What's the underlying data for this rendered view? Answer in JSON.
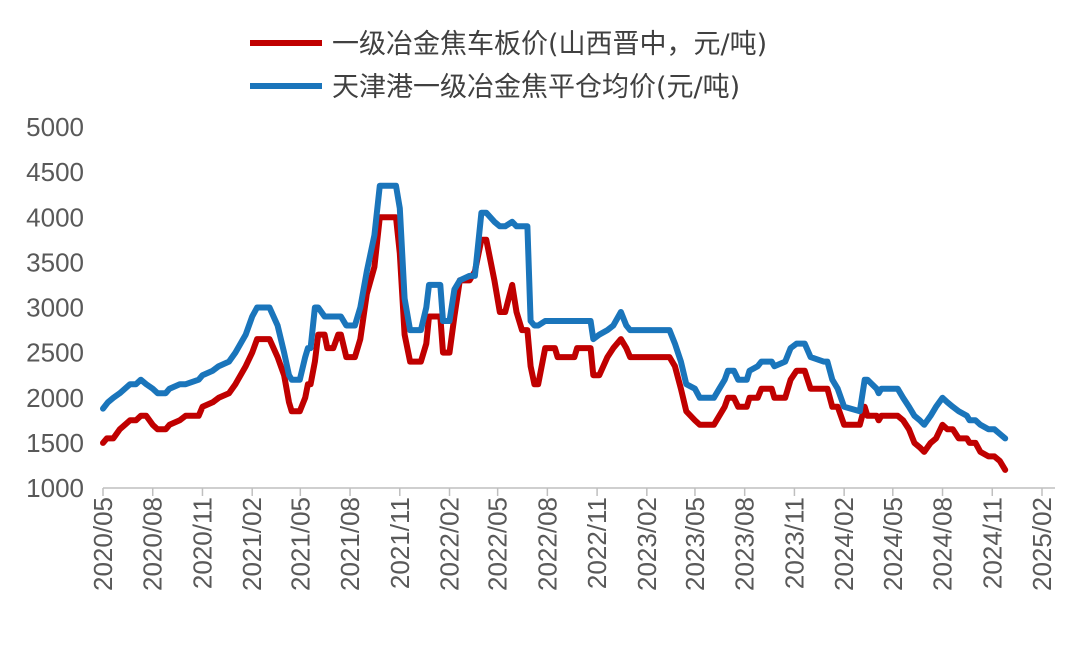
{
  "chart_data": {
    "type": "line",
    "ylim": [
      1000,
      5000
    ],
    "y_ticks": [
      1000,
      1500,
      2000,
      2500,
      3000,
      3500,
      4000,
      4500,
      5000
    ],
    "x_ticks": [
      "2020/05",
      "2020/08",
      "2020/11",
      "2021/02",
      "2021/05",
      "2021/08",
      "2021/11",
      "2022/02",
      "2022/05",
      "2022/08",
      "2022/11",
      "2023/02",
      "2023/05",
      "2023/08",
      "2023/11",
      "2024/02",
      "2024/05",
      "2024/08",
      "2024/11",
      "2025/02"
    ],
    "legend_position": "top",
    "grid": false,
    "series": [
      {
        "name": "一级冶金焦车板价(山西晋中，元/吨)",
        "color": "#C00000",
        "points": [
          [
            "2020-05-01",
            1500
          ],
          [
            "2020-05-08",
            1550
          ],
          [
            "2020-05-20",
            1550
          ],
          [
            "2020-06-01",
            1650
          ],
          [
            "2020-06-20",
            1750
          ],
          [
            "2020-07-01",
            1750
          ],
          [
            "2020-07-10",
            1800
          ],
          [
            "2020-07-20",
            1800
          ],
          [
            "2020-08-01",
            1700
          ],
          [
            "2020-08-10",
            1650
          ],
          [
            "2020-08-25",
            1650
          ],
          [
            "2020-09-01",
            1700
          ],
          [
            "2020-09-20",
            1750
          ],
          [
            "2020-10-01",
            1800
          ],
          [
            "2020-10-25",
            1800
          ],
          [
            "2020-11-01",
            1900
          ],
          [
            "2020-11-20",
            1950
          ],
          [
            "2020-12-01",
            2000
          ],
          [
            "2020-12-20",
            2050
          ],
          [
            "2021-01-01",
            2150
          ],
          [
            "2021-01-20",
            2350
          ],
          [
            "2021-02-01",
            2500
          ],
          [
            "2021-02-10",
            2650
          ],
          [
            "2021-03-01",
            2650
          ],
          [
            "2021-03-05",
            2650
          ],
          [
            "2021-03-20",
            2450
          ],
          [
            "2021-04-01",
            2250
          ],
          [
            "2021-04-10",
            1950
          ],
          [
            "2021-04-15",
            1850
          ],
          [
            "2021-04-30",
            1850
          ],
          [
            "2021-05-10",
            2000
          ],
          [
            "2021-05-15",
            2150
          ],
          [
            "2021-05-20",
            2150
          ],
          [
            "2021-05-28",
            2400
          ],
          [
            "2021-06-03",
            2700
          ],
          [
            "2021-06-15",
            2700
          ],
          [
            "2021-06-20",
            2550
          ],
          [
            "2021-07-01",
            2550
          ],
          [
            "2021-07-10",
            2700
          ],
          [
            "2021-07-15",
            2700
          ],
          [
            "2021-07-25",
            2450
          ],
          [
            "2021-08-10",
            2450
          ],
          [
            "2021-08-20",
            2650
          ],
          [
            "2021-09-01",
            3150
          ],
          [
            "2021-09-15",
            3450
          ],
          [
            "2021-09-25",
            4000
          ],
          [
            "2021-10-10",
            4000
          ],
          [
            "2021-10-25",
            4000
          ],
          [
            "2021-11-01",
            3600
          ],
          [
            "2021-11-10",
            2700
          ],
          [
            "2021-11-20",
            2400
          ],
          [
            "2021-12-10",
            2400
          ],
          [
            "2021-12-20",
            2600
          ],
          [
            "2021-12-25",
            2900
          ],
          [
            "2022-01-15",
            2900
          ],
          [
            "2022-01-20",
            2500
          ],
          [
            "2022-02-01",
            2500
          ],
          [
            "2022-02-10",
            2900
          ],
          [
            "2022-02-20",
            3300
          ],
          [
            "2022-03-10",
            3300
          ],
          [
            "2022-03-20",
            3400
          ],
          [
            "2022-04-01",
            3750
          ],
          [
            "2022-04-10",
            3750
          ],
          [
            "2022-04-25",
            3300
          ],
          [
            "2022-05-05",
            2950
          ],
          [
            "2022-05-15",
            2950
          ],
          [
            "2022-05-28",
            3250
          ],
          [
            "2022-06-05",
            2950
          ],
          [
            "2022-06-15",
            2750
          ],
          [
            "2022-06-25",
            2750
          ],
          [
            "2022-07-01",
            2350
          ],
          [
            "2022-07-08",
            2150
          ],
          [
            "2022-07-15",
            2150
          ],
          [
            "2022-07-28",
            2550
          ],
          [
            "2022-08-15",
            2550
          ],
          [
            "2022-08-20",
            2450
          ],
          [
            "2022-09-20",
            2450
          ],
          [
            "2022-09-25",
            2550
          ],
          [
            "2022-10-20",
            2550
          ],
          [
            "2022-10-25",
            2250
          ],
          [
            "2022-11-05",
            2250
          ],
          [
            "2022-11-20",
            2450
          ],
          [
            "2022-12-01",
            2550
          ],
          [
            "2022-12-15",
            2650
          ],
          [
            "2022-12-25",
            2550
          ],
          [
            "2023-01-01",
            2450
          ],
          [
            "2023-03-15",
            2450
          ],
          [
            "2023-03-25",
            2350
          ],
          [
            "2023-04-05",
            2100
          ],
          [
            "2023-04-15",
            1850
          ],
          [
            "2023-05-01",
            1750
          ],
          [
            "2023-05-10",
            1700
          ],
          [
            "2023-06-05",
            1700
          ],
          [
            "2023-06-15",
            1800
          ],
          [
            "2023-06-25",
            1900
          ],
          [
            "2023-07-01",
            2000
          ],
          [
            "2023-07-12",
            2000
          ],
          [
            "2023-07-20",
            1900
          ],
          [
            "2023-08-05",
            1900
          ],
          [
            "2023-08-10",
            2000
          ],
          [
            "2023-08-25",
            2000
          ],
          [
            "2023-09-01",
            2100
          ],
          [
            "2023-09-20",
            2100
          ],
          [
            "2023-09-25",
            2000
          ],
          [
            "2023-10-15",
            2000
          ],
          [
            "2023-10-25",
            2200
          ],
          [
            "2023-11-05",
            2300
          ],
          [
            "2023-11-20",
            2300
          ],
          [
            "2023-12-01",
            2100
          ],
          [
            "2023-12-25",
            2100
          ],
          [
            "2024-01-01",
            2100
          ],
          [
            "2024-01-10",
            1900
          ],
          [
            "2024-01-20",
            1900
          ],
          [
            "2024-02-01",
            1700
          ],
          [
            "2024-03-01",
            1700
          ],
          [
            "2024-03-10",
            1900
          ],
          [
            "2024-03-15",
            1800
          ],
          [
            "2024-04-01",
            1800
          ],
          [
            "2024-04-05",
            1750
          ],
          [
            "2024-04-10",
            1800
          ],
          [
            "2024-05-10",
            1800
          ],
          [
            "2024-05-20",
            1750
          ],
          [
            "2024-05-31",
            1650
          ],
          [
            "2024-06-10",
            1500
          ],
          [
            "2024-06-20",
            1450
          ],
          [
            "2024-06-28",
            1400
          ],
          [
            "2024-07-10",
            1500
          ],
          [
            "2024-07-20",
            1550
          ],
          [
            "2024-08-01",
            1700
          ],
          [
            "2024-08-10",
            1650
          ],
          [
            "2024-08-20",
            1650
          ],
          [
            "2024-08-31",
            1550
          ],
          [
            "2024-09-15",
            1550
          ],
          [
            "2024-09-20",
            1500
          ],
          [
            "2024-10-01",
            1500
          ],
          [
            "2024-10-10",
            1400
          ],
          [
            "2024-10-25",
            1350
          ],
          [
            "2024-11-05",
            1350
          ],
          [
            "2024-11-15",
            1300
          ],
          [
            "2024-11-25",
            1200
          ]
        ]
      },
      {
        "name": "天津港一级冶金焦平仓均价(元/吨)",
        "color": "#1A75BB",
        "points": [
          [
            "2020-05-01",
            1880
          ],
          [
            "2020-05-10",
            1950
          ],
          [
            "2020-05-20",
            2000
          ],
          [
            "2020-06-01",
            2050
          ],
          [
            "2020-06-20",
            2150
          ],
          [
            "2020-07-01",
            2150
          ],
          [
            "2020-07-10",
            2200
          ],
          [
            "2020-07-20",
            2150
          ],
          [
            "2020-08-01",
            2100
          ],
          [
            "2020-08-10",
            2050
          ],
          [
            "2020-08-25",
            2050
          ],
          [
            "2020-09-01",
            2100
          ],
          [
            "2020-09-20",
            2150
          ],
          [
            "2020-10-01",
            2150
          ],
          [
            "2020-10-25",
            2200
          ],
          [
            "2020-11-01",
            2250
          ],
          [
            "2020-11-20",
            2300
          ],
          [
            "2020-12-01",
            2350
          ],
          [
            "2020-12-20",
            2400
          ],
          [
            "2021-01-01",
            2500
          ],
          [
            "2021-01-20",
            2700
          ],
          [
            "2021-02-01",
            2900
          ],
          [
            "2021-02-10",
            3000
          ],
          [
            "2021-03-01",
            3000
          ],
          [
            "2021-03-05",
            3000
          ],
          [
            "2021-03-20",
            2800
          ],
          [
            "2021-04-01",
            2500
          ],
          [
            "2021-04-10",
            2250
          ],
          [
            "2021-04-15",
            2200
          ],
          [
            "2021-04-30",
            2200
          ],
          [
            "2021-05-10",
            2450
          ],
          [
            "2021-05-15",
            2550
          ],
          [
            "2021-05-20",
            2550
          ],
          [
            "2021-05-28",
            3000
          ],
          [
            "2021-06-03",
            3000
          ],
          [
            "2021-06-15",
            2900
          ],
          [
            "2021-06-20",
            2900
          ],
          [
            "2021-07-01",
            2900
          ],
          [
            "2021-07-15",
            2900
          ],
          [
            "2021-07-25",
            2800
          ],
          [
            "2021-08-10",
            2800
          ],
          [
            "2021-08-20",
            3000
          ],
          [
            "2021-09-01",
            3400
          ],
          [
            "2021-09-15",
            3800
          ],
          [
            "2021-09-25",
            4350
          ],
          [
            "2021-10-10",
            4350
          ],
          [
            "2021-10-25",
            4350
          ],
          [
            "2021-11-01",
            4100
          ],
          [
            "2021-11-10",
            3100
          ],
          [
            "2021-11-20",
            2750
          ],
          [
            "2021-12-10",
            2750
          ],
          [
            "2021-12-20",
            3000
          ],
          [
            "2021-12-25",
            3250
          ],
          [
            "2022-01-15",
            3250
          ],
          [
            "2022-01-20",
            2850
          ],
          [
            "2022-02-01",
            2850
          ],
          [
            "2022-02-10",
            3200
          ],
          [
            "2022-02-20",
            3300
          ],
          [
            "2022-03-10",
            3350
          ],
          [
            "2022-03-20",
            3350
          ],
          [
            "2022-04-01",
            4050
          ],
          [
            "2022-04-10",
            4050
          ],
          [
            "2022-04-25",
            3950
          ],
          [
            "2022-05-05",
            3900
          ],
          [
            "2022-05-15",
            3900
          ],
          [
            "2022-05-28",
            3950
          ],
          [
            "2022-06-05",
            3900
          ],
          [
            "2022-06-15",
            3900
          ],
          [
            "2022-06-25",
            3900
          ],
          [
            "2022-07-01",
            2850
          ],
          [
            "2022-07-08",
            2800
          ],
          [
            "2022-07-15",
            2800
          ],
          [
            "2022-07-28",
            2850
          ],
          [
            "2022-08-15",
            2850
          ],
          [
            "2022-08-20",
            2850
          ],
          [
            "2022-09-20",
            2850
          ],
          [
            "2022-09-25",
            2850
          ],
          [
            "2022-10-20",
            2850
          ],
          [
            "2022-10-25",
            2650
          ],
          [
            "2022-11-05",
            2700
          ],
          [
            "2022-11-20",
            2750
          ],
          [
            "2022-12-01",
            2800
          ],
          [
            "2022-12-15",
            2950
          ],
          [
            "2022-12-25",
            2800
          ],
          [
            "2023-01-01",
            2750
          ],
          [
            "2023-03-15",
            2750
          ],
          [
            "2023-03-25",
            2600
          ],
          [
            "2023-04-05",
            2400
          ],
          [
            "2023-04-15",
            2150
          ],
          [
            "2023-05-01",
            2100
          ],
          [
            "2023-05-10",
            2000
          ],
          [
            "2023-06-05",
            2000
          ],
          [
            "2023-06-15",
            2100
          ],
          [
            "2023-06-25",
            2200
          ],
          [
            "2023-07-01",
            2300
          ],
          [
            "2023-07-12",
            2300
          ],
          [
            "2023-07-20",
            2200
          ],
          [
            "2023-08-05",
            2200
          ],
          [
            "2023-08-10",
            2300
          ],
          [
            "2023-08-25",
            2350
          ],
          [
            "2023-09-01",
            2400
          ],
          [
            "2023-09-20",
            2400
          ],
          [
            "2023-09-25",
            2350
          ],
          [
            "2023-10-15",
            2400
          ],
          [
            "2023-10-25",
            2550
          ],
          [
            "2023-11-05",
            2600
          ],
          [
            "2023-11-20",
            2600
          ],
          [
            "2023-12-01",
            2450
          ],
          [
            "2023-12-25",
            2400
          ],
          [
            "2024-01-01",
            2400
          ],
          [
            "2024-01-10",
            2200
          ],
          [
            "2024-01-20",
            2100
          ],
          [
            "2024-02-01",
            1900
          ],
          [
            "2024-03-01",
            1850
          ],
          [
            "2024-03-10",
            2200
          ],
          [
            "2024-03-15",
            2200
          ],
          [
            "2024-04-01",
            2100
          ],
          [
            "2024-04-05",
            2050
          ],
          [
            "2024-04-10",
            2100
          ],
          [
            "2024-05-10",
            2100
          ],
          [
            "2024-05-20",
            2000
          ],
          [
            "2024-05-31",
            1900
          ],
          [
            "2024-06-10",
            1800
          ],
          [
            "2024-06-20",
            1750
          ],
          [
            "2024-06-28",
            1700
          ],
          [
            "2024-07-10",
            1800
          ],
          [
            "2024-07-20",
            1900
          ],
          [
            "2024-08-01",
            2000
          ],
          [
            "2024-08-10",
            1950
          ],
          [
            "2024-08-20",
            1900
          ],
          [
            "2024-08-31",
            1850
          ],
          [
            "2024-09-15",
            1800
          ],
          [
            "2024-09-20",
            1750
          ],
          [
            "2024-10-01",
            1750
          ],
          [
            "2024-10-10",
            1700
          ],
          [
            "2024-10-25",
            1650
          ],
          [
            "2024-11-05",
            1650
          ],
          [
            "2024-11-15",
            1600
          ],
          [
            "2024-11-25",
            1550
          ]
        ]
      }
    ]
  }
}
